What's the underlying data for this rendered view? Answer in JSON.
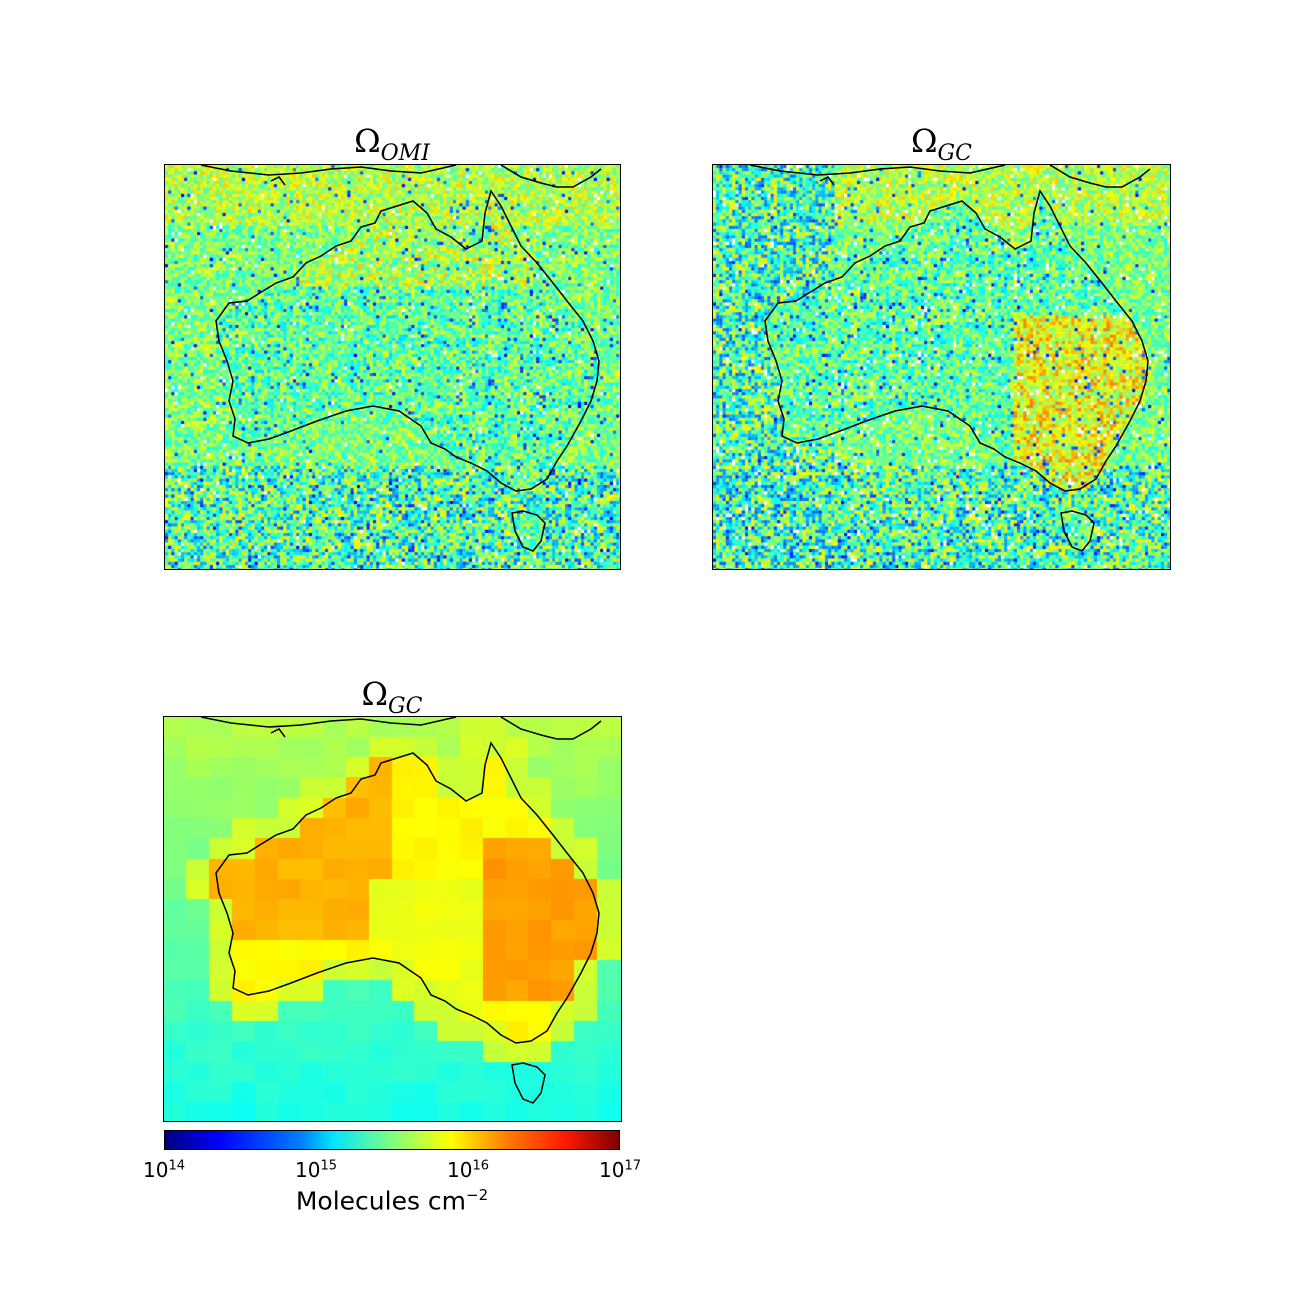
{
  "panels": [
    {
      "title_main": "Ω",
      "title_sub": "OMI",
      "style": "noisy"
    },
    {
      "title_main": "Ω",
      "title_sub": "GC",
      "style": "noisy-strong"
    },
    {
      "title_main": "Ω",
      "title_sub": "GC",
      "style": "smooth"
    }
  ],
  "colorbar": {
    "ticks": [
      {
        "base": "10",
        "exp": "14"
      },
      {
        "base": "10",
        "exp": "15"
      },
      {
        "base": "10",
        "exp": "16"
      },
      {
        "base": "10",
        "exp": "17"
      }
    ],
    "label_main": "Molecules cm",
    "label_exp": "−2",
    "scale": "log",
    "range": [
      100000000000000.0,
      1e+17
    ],
    "colormap": "jet"
  },
  "colors": {
    "coastline": "#000000",
    "ocean_base": "#8ef07a"
  }
}
